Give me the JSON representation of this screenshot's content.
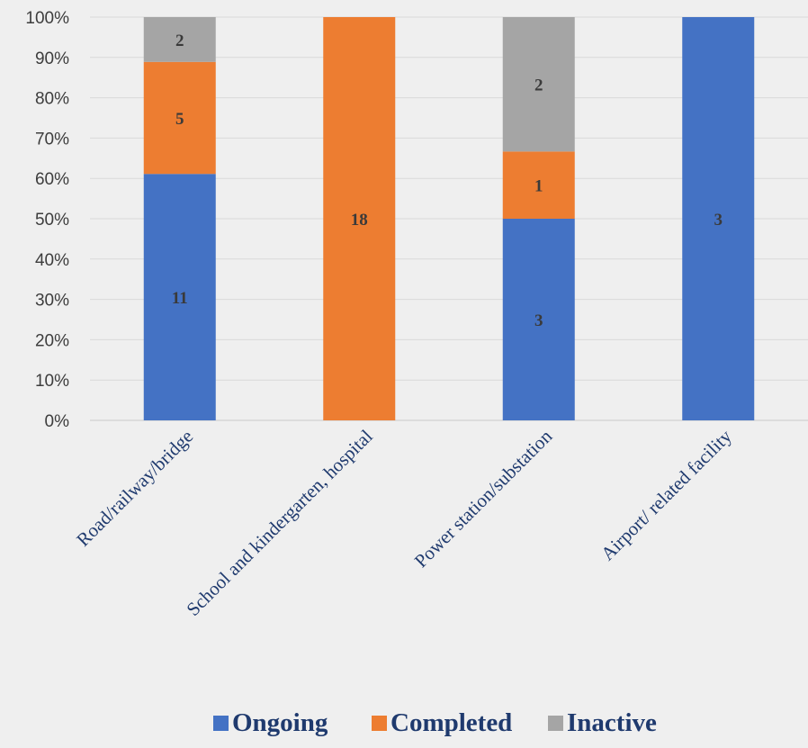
{
  "chart_data": {
    "type": "bar",
    "stacked": true,
    "normalized_percent": true,
    "categories": [
      "Road/railway/bridge",
      "School and kindergarten, hospital",
      "Power station/substation",
      "Airport/ related facility"
    ],
    "series": [
      {
        "name": "Ongoing",
        "values": [
          11,
          0,
          3,
          3
        ],
        "color": "#4472c4"
      },
      {
        "name": "Completed",
        "values": [
          5,
          18,
          1,
          0
        ],
        "color": "#ed7d31"
      },
      {
        "name": "Inactive",
        "values": [
          2,
          0,
          2,
          0
        ],
        "color": "#a5a5a5"
      }
    ],
    "title": "",
    "xlabel": "",
    "ylabel": "",
    "ylim": [
      0,
      100
    ],
    "yticks": [
      "0%",
      "10%",
      "20%",
      "30%",
      "40%",
      "50%",
      "60%",
      "70%",
      "80%",
      "90%",
      "100%"
    ],
    "grid": true,
    "legend": "bottom"
  }
}
